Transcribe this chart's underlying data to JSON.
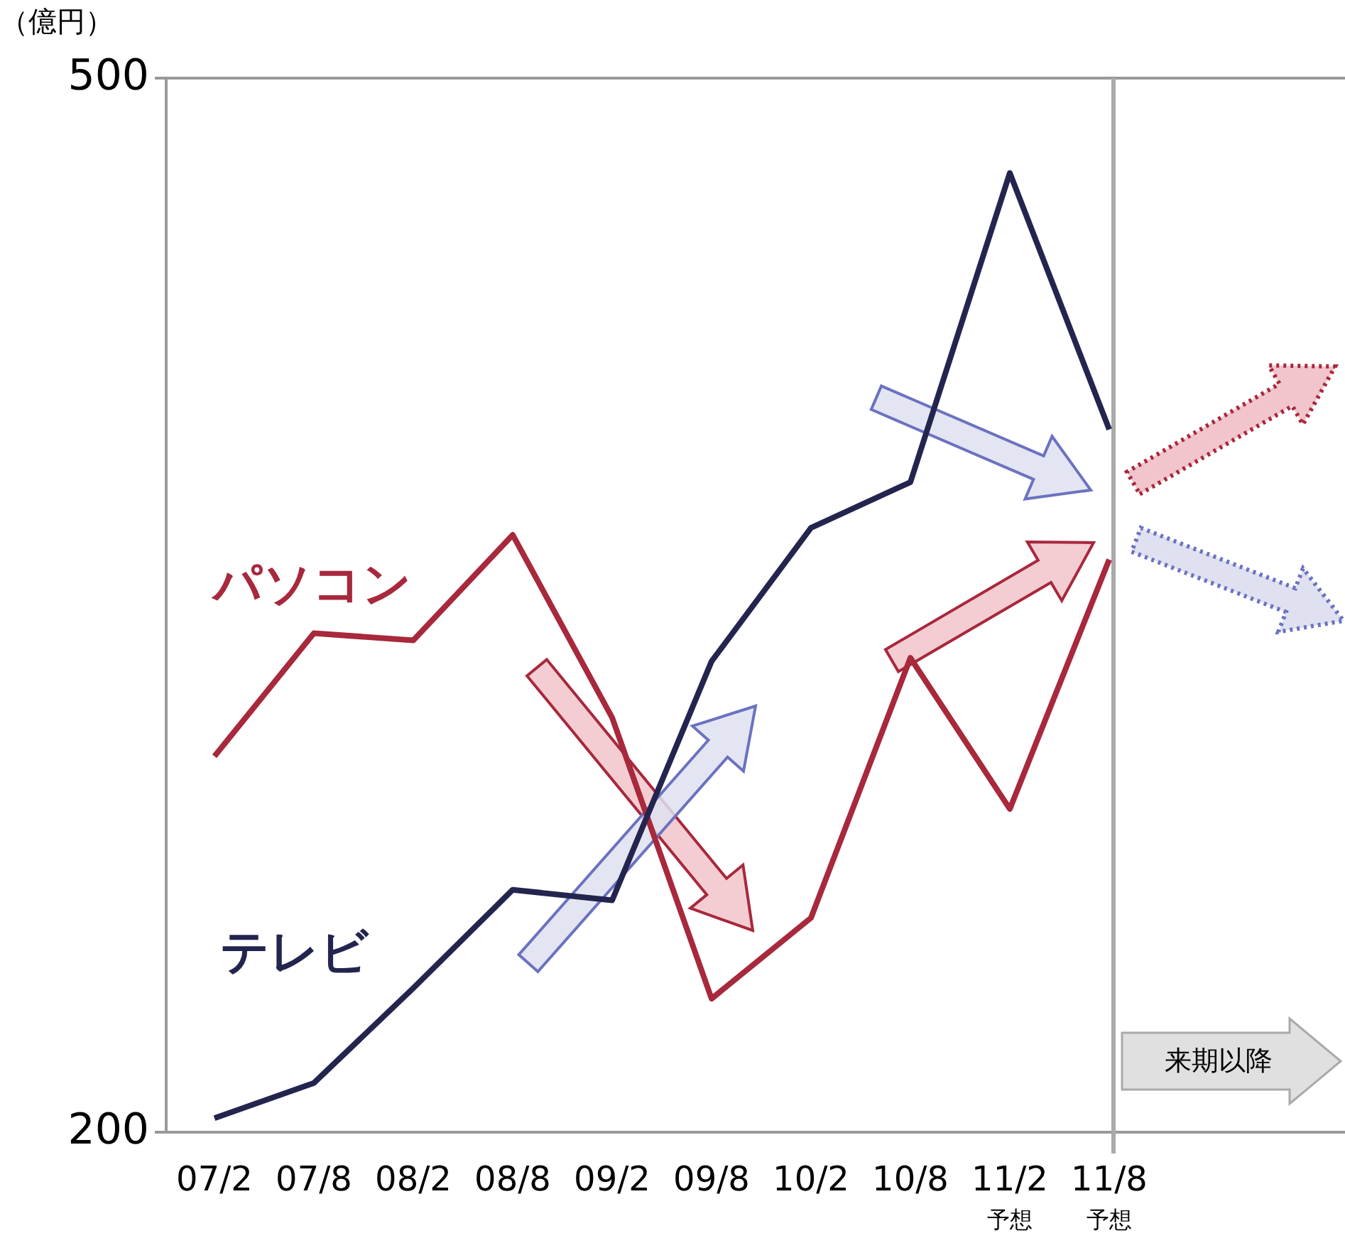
{
  "chart_data": {
    "type": "line",
    "ylabel": "（億円）",
    "categories": [
      "07/2",
      "07/8",
      "08/2",
      "08/8",
      "09/2",
      "09/8",
      "10/2",
      "10/8",
      "11/2$_{予想}$",
      "11/8$_{予想}$"
    ],
    "series": [
      {
        "name": "パソコン",
        "color": "#a8283c",
        "values": [
          307,
          342,
          340,
          370,
          318,
          238,
          261,
          335,
          292,
          363
        ]
      },
      {
        "name": "テレビ",
        "color": "#23254f",
        "values": [
          204,
          214,
          241,
          269,
          266,
          334,
          372,
          385,
          473,
          400
        ]
      }
    ],
    "ylim": [
      200,
      500
    ],
    "yticks": [
      200,
      500
    ],
    "marker": "none",
    "line_style": "solid",
    "ref_lines": [
      {
        "axis": "x",
        "value": "11/8$_{予想}$",
        "color": "#aaaaaa"
      }
    ],
    "annotations": [
      "来期以降"
    ]
  }
}
